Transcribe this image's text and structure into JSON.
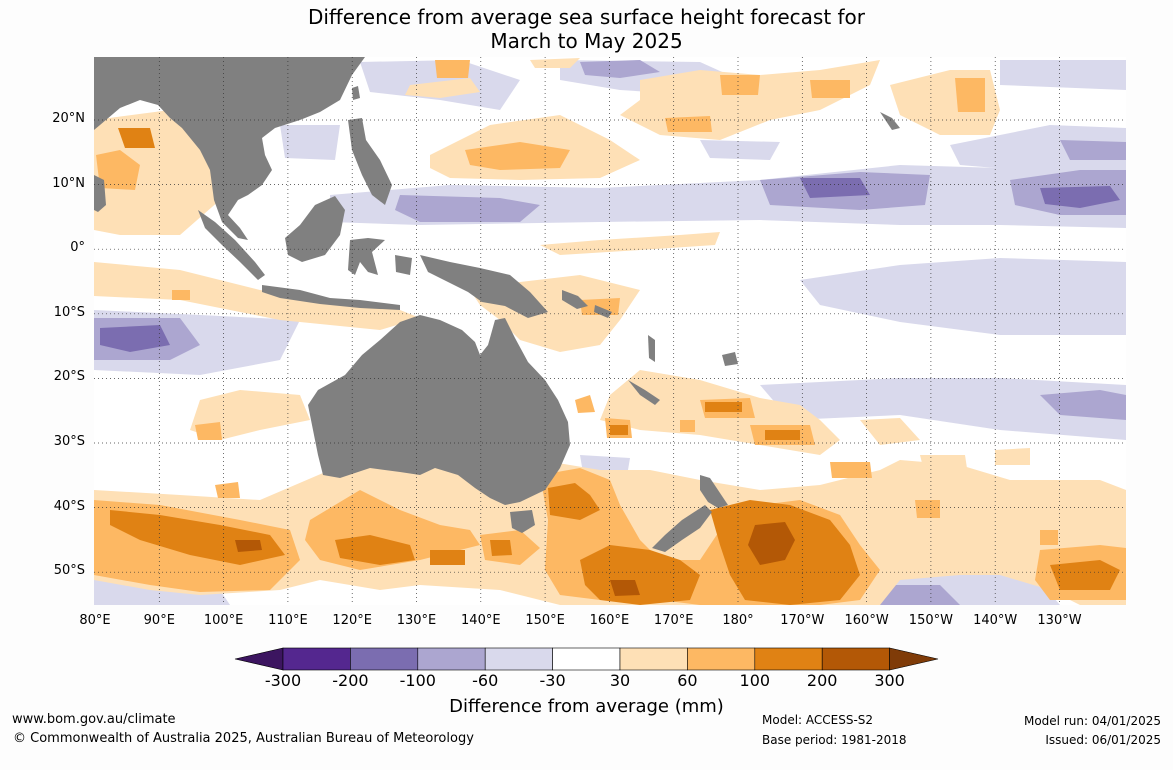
{
  "title_line1": "Difference from average sea surface height forecast for",
  "title_line2": "March to May 2025",
  "lat_labels": [
    "20°N",
    "10°N",
    "0°",
    "10°S",
    "20°S",
    "30°S",
    "40°S",
    "50°S"
  ],
  "lon_labels": [
    "80°E",
    "90°E",
    "100°E",
    "110°E",
    "120°E",
    "130°E",
    "140°E",
    "150°E",
    "160°E",
    "170°E",
    "180°",
    "170°W",
    "160°W",
    "150°W",
    "140°W",
    "130°W"
  ],
  "colorbar": {
    "ticks": [
      "-300",
      "-200",
      "-100",
      "-60",
      "-30",
      "30",
      "60",
      "100",
      "200",
      "300"
    ],
    "colors": [
      "#3c1560",
      "#54278f",
      "#7b6db0",
      "#aca6d0",
      "#d9d9ec",
      "#ffffff",
      "#fee0b6",
      "#fdb863",
      "#e08214",
      "#b35806",
      "#7f3b08"
    ],
    "label": "Difference from average (mm)"
  },
  "colors": {
    "land": "#808080",
    "ocean": "#ffffff"
  },
  "footer": {
    "website": "www.bom.gov.au/climate",
    "copyright": "© Commonwealth of Australia 2025, Australian Bureau of Meteorology",
    "model": "Model: ACCESS-S2",
    "base_period": "Base period: 1981-2018",
    "model_run": "Model run: 04/01/2025",
    "issued": "Issued: 06/01/2025"
  }
}
